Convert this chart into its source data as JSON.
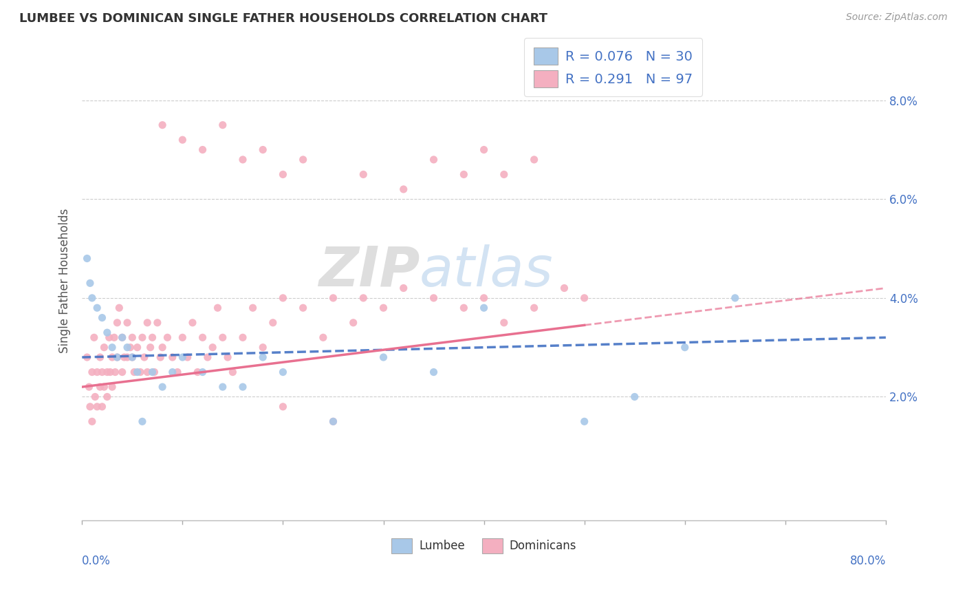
{
  "title": "LUMBEE VS DOMINICAN SINGLE FATHER HOUSEHOLDS CORRELATION CHART",
  "source": "Source: ZipAtlas.com",
  "ylabel": "Single Father Households",
  "yticks": [
    "2.0%",
    "4.0%",
    "6.0%",
    "8.0%"
  ],
  "ytick_vals": [
    0.02,
    0.04,
    0.06,
    0.08
  ],
  "xlim": [
    0.0,
    0.8
  ],
  "ylim": [
    -0.005,
    0.092
  ],
  "lumbee_color": "#a8c8e8",
  "dominican_color": "#f4afc0",
  "lumbee_line_color": "#4472c4",
  "dominican_line_color": "#e87090",
  "lumbee_line_intercept": 0.028,
  "lumbee_line_slope": 0.005,
  "dominican_line_intercept": 0.022,
  "dominican_line_slope": 0.025,
  "lumbee_x": [
    0.005,
    0.008,
    0.01,
    0.015,
    0.02,
    0.025,
    0.03,
    0.035,
    0.04,
    0.045,
    0.05,
    0.055,
    0.06,
    0.07,
    0.08,
    0.09,
    0.1,
    0.12,
    0.14,
    0.16,
    0.18,
    0.2,
    0.25,
    0.3,
    0.35,
    0.4,
    0.5,
    0.55,
    0.6,
    0.65
  ],
  "lumbee_y": [
    0.048,
    0.043,
    0.04,
    0.038,
    0.036,
    0.033,
    0.03,
    0.028,
    0.032,
    0.03,
    0.028,
    0.025,
    0.015,
    0.025,
    0.022,
    0.025,
    0.028,
    0.025,
    0.022,
    0.022,
    0.028,
    0.025,
    0.015,
    0.028,
    0.025,
    0.038,
    0.015,
    0.02,
    0.03,
    0.04
  ],
  "dominican_x": [
    0.005,
    0.007,
    0.008,
    0.01,
    0.01,
    0.012,
    0.013,
    0.015,
    0.015,
    0.018,
    0.018,
    0.02,
    0.02,
    0.022,
    0.022,
    0.025,
    0.025,
    0.027,
    0.028,
    0.03,
    0.03,
    0.032,
    0.033,
    0.035,
    0.035,
    0.037,
    0.04,
    0.04,
    0.042,
    0.045,
    0.045,
    0.048,
    0.05,
    0.05,
    0.052,
    0.055,
    0.058,
    0.06,
    0.062,
    0.065,
    0.065,
    0.068,
    0.07,
    0.072,
    0.075,
    0.078,
    0.08,
    0.085,
    0.09,
    0.095,
    0.1,
    0.105,
    0.11,
    0.115,
    0.12,
    0.125,
    0.13,
    0.135,
    0.14,
    0.145,
    0.15,
    0.16,
    0.17,
    0.18,
    0.19,
    0.2,
    0.22,
    0.24,
    0.25,
    0.27,
    0.28,
    0.3,
    0.32,
    0.35,
    0.38,
    0.4,
    0.42,
    0.45,
    0.48,
    0.5,
    0.18,
    0.2,
    0.22,
    0.28,
    0.32,
    0.35,
    0.38,
    0.4,
    0.42,
    0.45,
    0.08,
    0.1,
    0.12,
    0.14,
    0.16,
    0.2,
    0.25
  ],
  "dominican_y": [
    0.028,
    0.022,
    0.018,
    0.025,
    0.015,
    0.032,
    0.02,
    0.025,
    0.018,
    0.028,
    0.022,
    0.025,
    0.018,
    0.03,
    0.022,
    0.025,
    0.02,
    0.032,
    0.025,
    0.028,
    0.022,
    0.032,
    0.025,
    0.035,
    0.028,
    0.038,
    0.032,
    0.025,
    0.028,
    0.035,
    0.028,
    0.03,
    0.028,
    0.032,
    0.025,
    0.03,
    0.025,
    0.032,
    0.028,
    0.035,
    0.025,
    0.03,
    0.032,
    0.025,
    0.035,
    0.028,
    0.03,
    0.032,
    0.028,
    0.025,
    0.032,
    0.028,
    0.035,
    0.025,
    0.032,
    0.028,
    0.03,
    0.038,
    0.032,
    0.028,
    0.025,
    0.032,
    0.038,
    0.03,
    0.035,
    0.04,
    0.038,
    0.032,
    0.04,
    0.035,
    0.04,
    0.038,
    0.042,
    0.04,
    0.038,
    0.04,
    0.035,
    0.038,
    0.042,
    0.04,
    0.07,
    0.065,
    0.068,
    0.065,
    0.062,
    0.068,
    0.065,
    0.07,
    0.065,
    0.068,
    0.075,
    0.072,
    0.07,
    0.075,
    0.068,
    0.018,
    0.015
  ]
}
